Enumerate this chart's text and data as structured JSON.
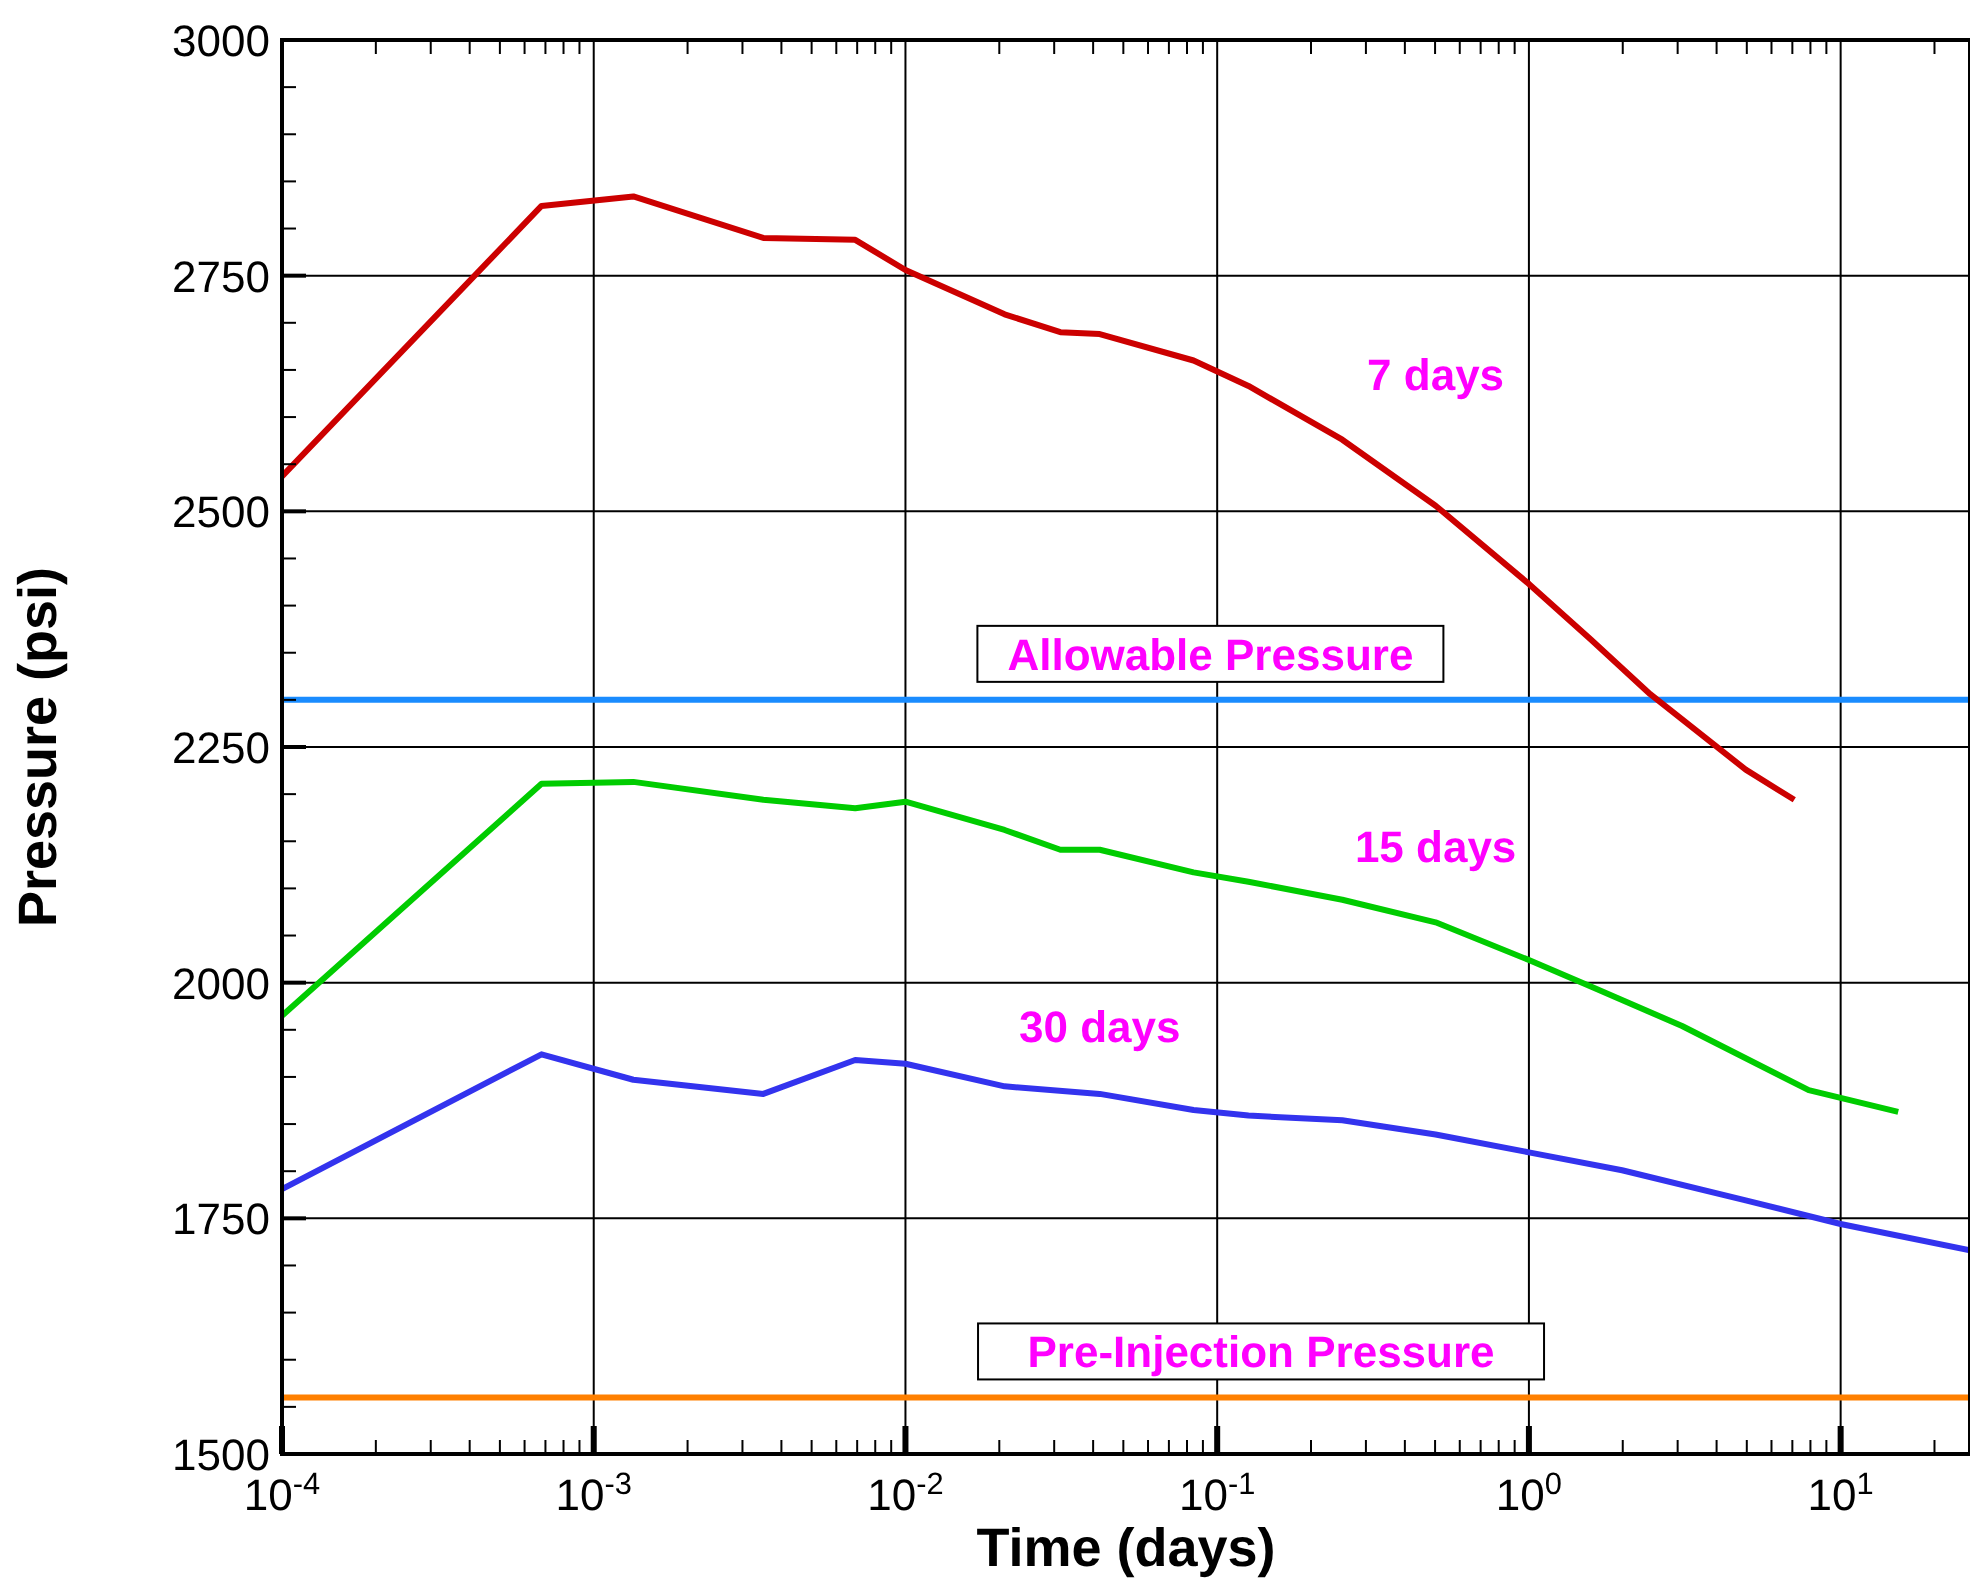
{
  "chart_data": {
    "type": "line",
    "xlabel": "Time (days)",
    "ylabel": "Pressure (psi)",
    "log": "x",
    "grid": true,
    "line_style": "solid",
    "marker": "none",
    "xlim": [
      0.0001,
      26
    ],
    "xticks": [
      {
        "value": 0.0001,
        "label": "10$^{-4}$"
      },
      {
        "value": 0.001,
        "label": "10$^{-3}$"
      },
      {
        "value": 0.01,
        "label": "10$^{-2}$"
      },
      {
        "value": 0.1,
        "label": "10$^{-1}$"
      },
      {
        "value": 1,
        "label": "10$^{0}$"
      },
      {
        "value": 10,
        "label": "10$^{1}$"
      }
    ],
    "ylim": [
      1500,
      3000
    ],
    "yticks": [
      1500,
      1750,
      2000,
      2250,
      2500,
      2750,
      3000
    ],
    "series": [
      {
        "name": "7 days",
        "color": "#cc0000",
        "x": [
          0.0001,
          0.00068,
          0.00134,
          0.0035,
          0.0069,
          0.01,
          0.0208,
          0.0314,
          0.042,
          0.084,
          0.126,
          0.252,
          0.502,
          1,
          1.58,
          2.45,
          4.96,
          7.1
        ],
        "values": [
          2537,
          2824,
          2834,
          2790,
          2788,
          2756,
          2709,
          2690,
          2688,
          2660,
          2633,
          2576,
          2506,
          2423,
          2364,
          2306,
          2226,
          2194
        ]
      },
      {
        "name": "15 days",
        "color": "#00cc00",
        "x": [
          0.0001,
          0.00068,
          0.00134,
          0.0035,
          0.0069,
          0.01,
          0.0208,
          0.0314,
          0.042,
          0.084,
          0.126,
          0.252,
          0.502,
          1,
          1.58,
          3.1,
          7.9,
          15.3
        ],
        "values": [
          1965,
          2211,
          2213,
          2194,
          2185,
          2192,
          2162,
          2141,
          2141,
          2117,
          2107,
          2088,
          2064,
          2024,
          1996,
          1954,
          1886,
          1863
        ]
      },
      {
        "name": "30 days",
        "color": "#3333ee",
        "x": [
          0.0001,
          0.00068,
          0.00134,
          0.0035,
          0.0069,
          0.01,
          0.0208,
          0.042,
          0.084,
          0.126,
          0.252,
          0.502,
          1,
          1.99,
          4.96,
          10,
          26
        ],
        "values": [
          1781,
          1924,
          1897,
          1882,
          1918,
          1914,
          1890,
          1882,
          1865,
          1859,
          1854,
          1839,
          1820,
          1801,
          1769,
          1744,
          1716
        ]
      }
    ],
    "ref_lines": [
      {
        "axis": "y",
        "value": 2300,
        "label": "Allowable Pressure",
        "color": "#1a8cff"
      },
      {
        "axis": "y",
        "value": 1560,
        "label": "Pre-Injection Pressure",
        "color": "#ff8000"
      }
    ]
  }
}
